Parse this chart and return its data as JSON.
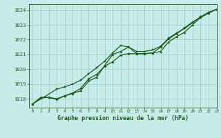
{
  "title": "Graphe pression niveau de la mer (hPa)",
  "background_color": "#c6ebe8",
  "grid_color": "#9ecfcc",
  "line_color": "#1a5c1a",
  "xlim": [
    -0.5,
    23
  ],
  "ylim": [
    1017.4,
    1024.4
  ],
  "yticks": [
    1018,
    1019,
    1020,
    1021,
    1022,
    1023,
    1024
  ],
  "xticks": [
    0,
    1,
    2,
    3,
    4,
    5,
    6,
    7,
    8,
    9,
    10,
    11,
    12,
    13,
    14,
    15,
    16,
    17,
    18,
    19,
    20,
    21,
    22,
    23
  ],
  "line1_x": [
    0,
    1,
    2,
    3,
    4,
    5,
    6,
    7,
    8,
    9,
    10,
    11,
    12,
    13,
    14,
    15,
    16,
    17,
    18,
    19,
    20,
    21,
    22,
    23
  ],
  "line1_y": [
    1017.65,
    1018.1,
    1018.1,
    1018.0,
    1018.2,
    1018.35,
    1018.55,
    1019.2,
    1019.45,
    1020.25,
    1021.0,
    1021.2,
    1021.5,
    1021.05,
    1021.05,
    1021.1,
    1021.2,
    1021.85,
    1022.2,
    1022.5,
    1023.0,
    1023.5,
    1023.8,
    1024.05
  ],
  "line2_x": [
    0,
    1,
    2,
    3,
    4,
    5,
    6,
    7,
    8,
    9,
    10,
    11,
    12,
    13,
    14,
    15,
    16,
    17,
    18,
    19,
    20,
    21,
    22,
    23
  ],
  "line2_y": [
    1017.65,
    1018.05,
    1018.1,
    1017.95,
    1018.2,
    1018.4,
    1018.7,
    1019.35,
    1019.65,
    1020.2,
    1020.5,
    1020.95,
    1021.05,
    1021.05,
    1021.05,
    1021.1,
    1021.5,
    1022.05,
    1022.4,
    1022.8,
    1023.2,
    1023.5,
    1023.8,
    1024.05
  ],
  "line3_x": [
    0,
    3,
    4,
    5,
    6,
    7,
    8,
    9,
    10,
    11,
    12,
    13,
    14,
    15,
    16,
    17,
    18,
    19,
    20,
    21,
    22,
    23
  ],
  "line3_y": [
    1017.65,
    1018.65,
    1018.8,
    1019.0,
    1019.25,
    1019.7,
    1020.1,
    1020.55,
    1021.1,
    1021.6,
    1021.5,
    1021.2,
    1021.2,
    1021.3,
    1021.55,
    1022.1,
    1022.45,
    1022.75,
    1023.15,
    1023.55,
    1023.85,
    1024.05
  ]
}
